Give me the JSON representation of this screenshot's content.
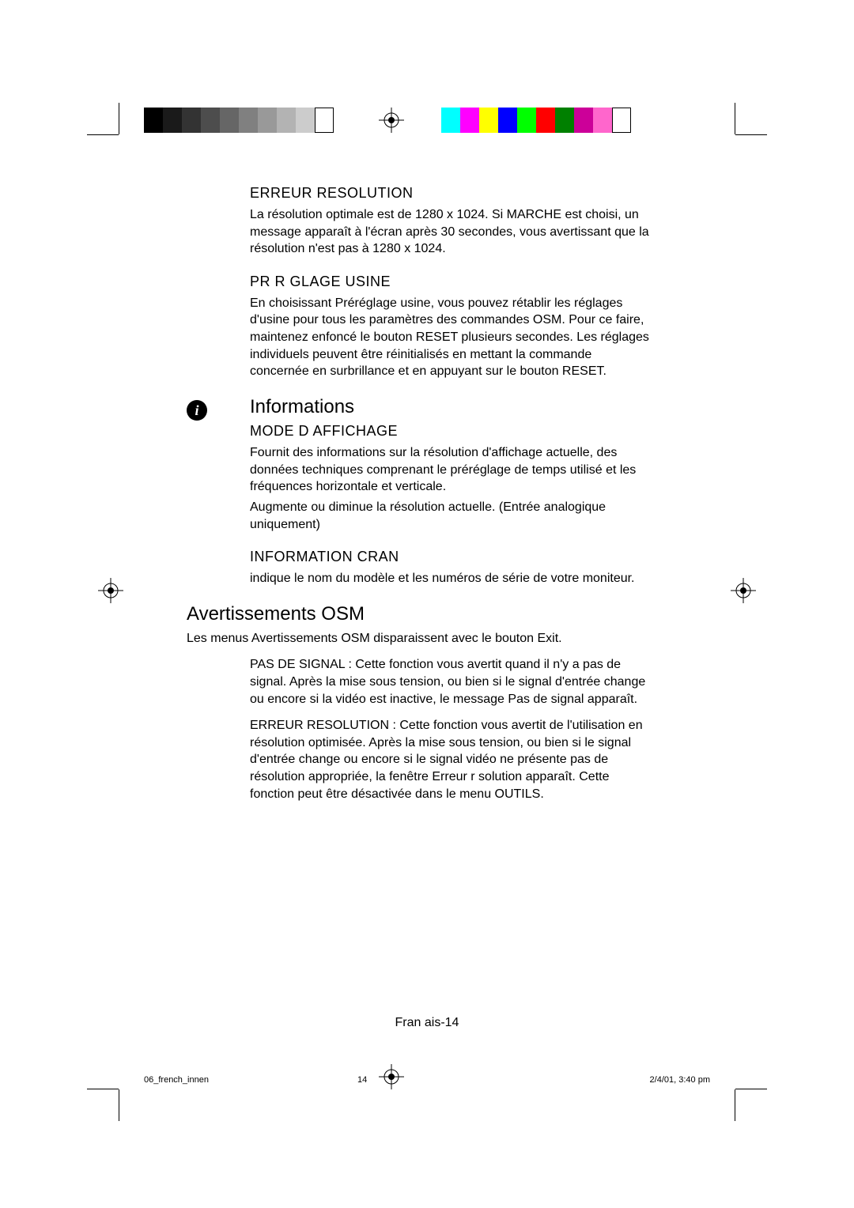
{
  "sections": {
    "erreur_resolution": {
      "heading": "ERREUR RESOLUTION",
      "body": "La résolution optimale est de 1280 x 1024. Si MARCHE est choisi, un message apparaît à l'écran après 30 secondes, vous avertissant que la résolution n'est pas à 1280 x 1024."
    },
    "prereglage_usine": {
      "heading": "PR R GLAGE USINE",
      "body": "En choisissant Préréglage usine, vous pouvez rétablir les réglages d'usine pour tous les paramètres des commandes OSM. Pour ce faire, maintenez enfoncé le bouton RESET plusieurs secondes. Les réglages individuels peuvent être réinitialisés en mettant la commande concernée en surbrillance et en appuyant sur le bouton RESET."
    },
    "informations": {
      "heading": "Informations",
      "mode_affichage": {
        "heading": "MODE D AFFICHAGE",
        "body1": "Fournit des informations sur la résolution d'affichage actuelle, des données techniques comprenant le préréglage de temps utilisé et les fréquences horizontale et verticale.",
        "body2": "Augmente ou diminue la résolution actuelle. (Entrée analogique uniquement)"
      },
      "information_ecran": {
        "heading": "INFORMATION  CRAN",
        "body": "indique le nom du modèle et les numéros de série de votre moniteur."
      }
    },
    "avertissements": {
      "heading": "Avertissements OSM",
      "intro": "Les menus Avertissements OSM disparaissent avec le bouton Exit.",
      "pas_de_signal": "PAS DE SIGNAL : Cette fonction vous avertit quand il n'y a pas de signal. Après la mise sous tension, ou bien si le signal d'entrée change ou encore si la vidéo est inactive, le message Pas de signal  apparaît.",
      "erreur_resolution": "ERREUR RESOLUTION : Cette fonction vous avertit de l'utilisation en résolution optimisée. Après la mise sous tension, ou bien si le signal d'entrée change ou encore si le signal vidéo ne présente pas de résolution appropriée, la fenêtre Erreur r solution  apparaît. Cette fonction peut être désactivée dans le menu OUTILS."
    }
  },
  "page_number": "Fran ais-14",
  "footer": {
    "file": "06_french_innen",
    "page": "14",
    "date": "2/4/01, 3:40 pm"
  },
  "gray_bar_colors": [
    "#000000",
    "#1a1a1a",
    "#333333",
    "#4d4d4d",
    "#666666",
    "#808080",
    "#999999",
    "#b3b3b3",
    "#cccccc",
    "#ffffff"
  ],
  "color_bar_colors": [
    "#00ffff",
    "#ff00ff",
    "#ffff00",
    "#0000ff",
    "#00ff00",
    "#ff0000",
    "#008000",
    "#cc0099",
    "#ff66cc",
    "#ffffff"
  ]
}
